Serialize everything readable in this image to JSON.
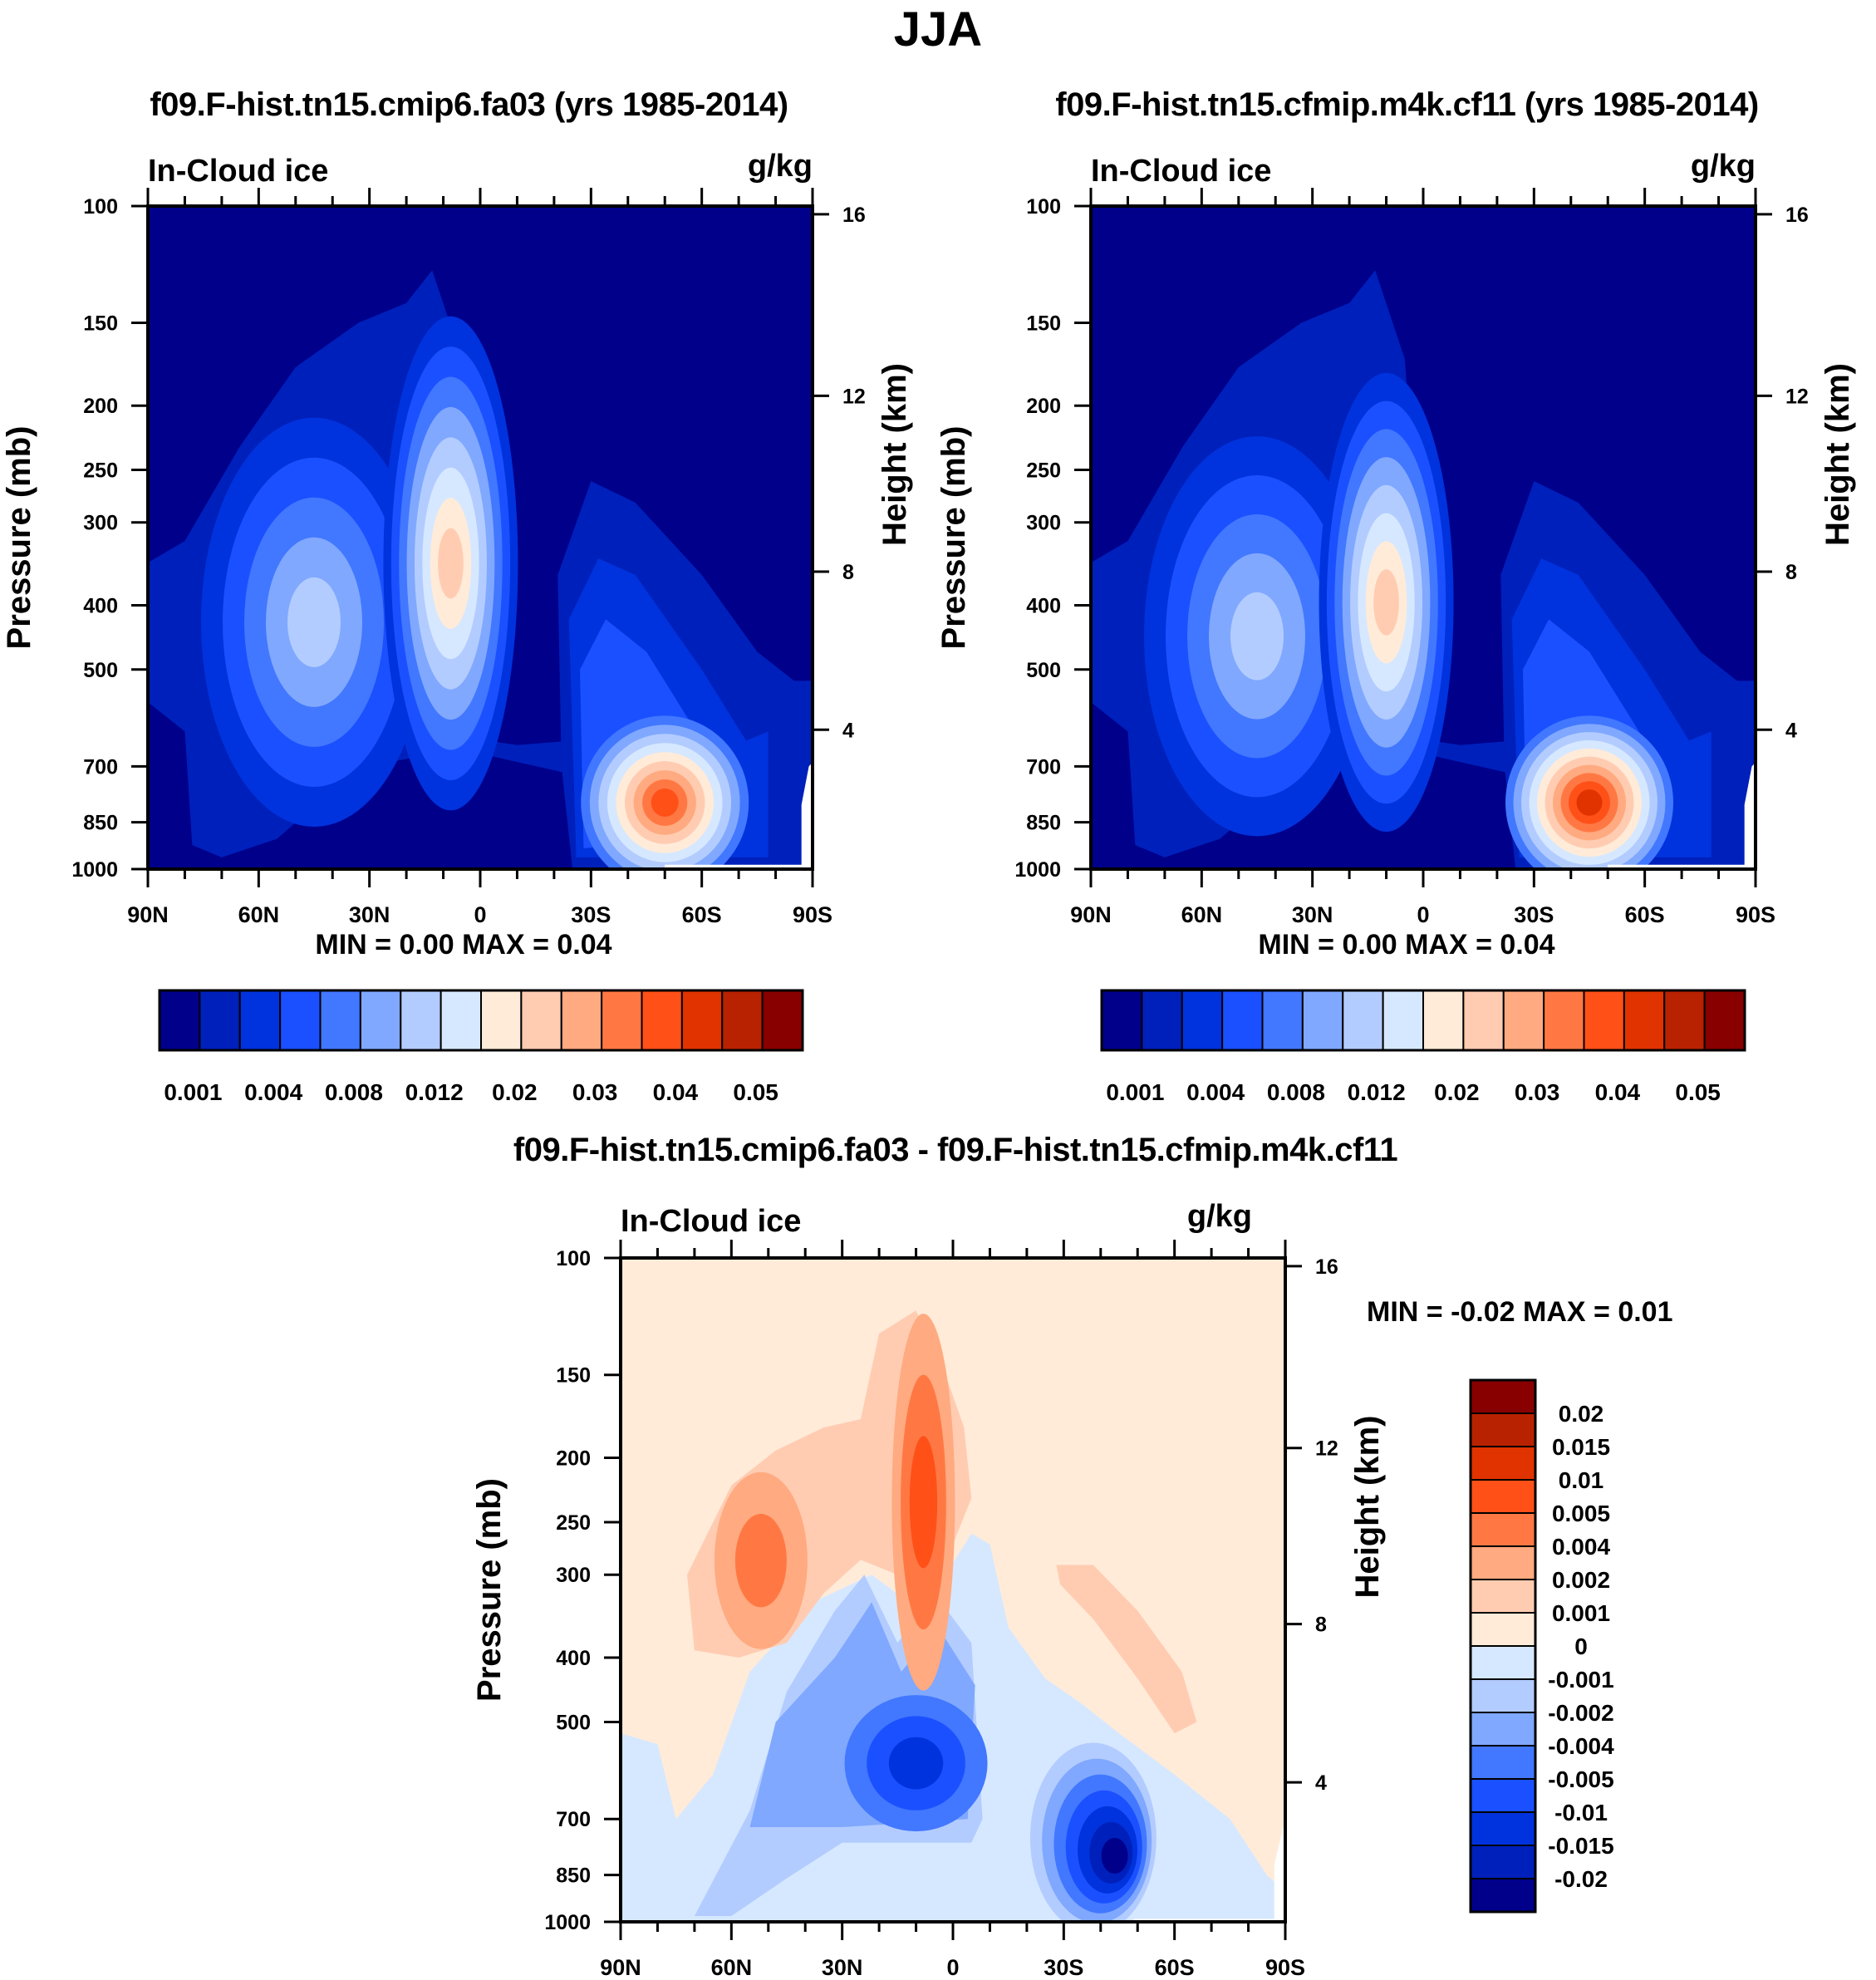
{
  "main_title": "JJA",
  "chart_data": [
    {
      "id": "top-left",
      "type": "heatmap",
      "title": "f09.F-hist.tn15.cmip6.fa03 (yrs 1985-2014)",
      "left_string": "In-Cloud ice",
      "right_string": "g/kg",
      "xlabel": "",
      "ylabel": "Pressure (mb)",
      "ylabel_right": "Height (km)",
      "x_ticks": [
        "90N",
        "60N",
        "30N",
        "0",
        "30S",
        "60S",
        "90S"
      ],
      "x_range": [
        90,
        -90
      ],
      "y_ticks": [
        100,
        150,
        200,
        250,
        300,
        400,
        500,
        700,
        850,
        1000
      ],
      "y_range": [
        100,
        1000
      ],
      "y_scale": "log",
      "right_ticks": [
        16,
        12,
        8,
        4
      ],
      "stats": "MIN =   0.00  MAX =   0.04",
      "min": 0.0,
      "max": 0.04,
      "colorbar": {
        "orientation": "horizontal",
        "labels": [
          "0.001",
          "0.004",
          "0.008",
          "0.012",
          "0.02",
          "0.03",
          "0.04",
          "0.05"
        ],
        "levels": [
          0.001,
          0.002,
          0.004,
          0.006,
          0.008,
          0.01,
          0.012,
          0.015,
          0.02,
          0.025,
          0.03,
          0.035,
          0.04,
          0.045,
          0.05
        ],
        "colors": [
          "#00008b",
          "#0020bb",
          "#0033dd",
          "#1a50ff",
          "#4277ff",
          "#80a8ff",
          "#b3ccff",
          "#d6e8ff",
          "#ffebd8",
          "#ffccb2",
          "#ffaa80",
          "#ff7844",
          "#ff5018",
          "#e03300",
          "#b82200",
          "#880000"
        ]
      },
      "features": [
        {
          "name": "nh-storm-track-ice",
          "lat": 45,
          "p_top": 300,
          "p_bot": 600,
          "peak_level": 6
        },
        {
          "name": "tropical-ice-column",
          "lat": 8,
          "p_top": 230,
          "p_bot": 520,
          "peak_level": 9
        },
        {
          "name": "sh-lowlevel-ice",
          "lat": -50,
          "p_top": 700,
          "p_bot": 900,
          "peak_level": 12
        }
      ],
      "missing_region": "below ~900 mb south of 50S (white)"
    },
    {
      "id": "top-right",
      "type": "heatmap",
      "title": "f09.F-hist.tn15.cfmip.m4k.cf11 (yrs 1985-2014)",
      "left_string": "In-Cloud ice",
      "right_string": "g/kg",
      "xlabel": "",
      "ylabel": "Pressure (mb)",
      "ylabel_right": "Height (km)",
      "x_ticks": [
        "90N",
        "60N",
        "30N",
        "0",
        "30S",
        "60S",
        "90S"
      ],
      "x_range": [
        90,
        -90
      ],
      "y_ticks": [
        100,
        150,
        200,
        250,
        300,
        400,
        500,
        700,
        850,
        1000
      ],
      "y_range": [
        100,
        1000
      ],
      "y_scale": "log",
      "right_ticks": [
        16,
        12,
        8,
        4
      ],
      "stats": "MIN =   0.00  MAX =   0.04",
      "min": 0.0,
      "max": 0.04,
      "colorbar": {
        "orientation": "horizontal",
        "labels": [
          "0.001",
          "0.004",
          "0.008",
          "0.012",
          "0.02",
          "0.03",
          "0.04",
          "0.05"
        ],
        "levels": [
          0.001,
          0.002,
          0.004,
          0.006,
          0.008,
          0.01,
          0.012,
          0.015,
          0.02,
          0.025,
          0.03,
          0.035,
          0.04,
          0.045,
          0.05
        ],
        "colors": [
          "#00008b",
          "#0020bb",
          "#0033dd",
          "#1a50ff",
          "#4277ff",
          "#80a8ff",
          "#b3ccff",
          "#d6e8ff",
          "#ffebd8",
          "#ffccb2",
          "#ffaa80",
          "#ff7844",
          "#ff5018",
          "#e03300",
          "#b82200",
          "#880000"
        ]
      },
      "features": [
        {
          "name": "nh-storm-track-ice",
          "lat": 45,
          "p_top": 320,
          "p_bot": 620,
          "peak_level": 6
        },
        {
          "name": "tropical-ice-column",
          "lat": 10,
          "p_top": 280,
          "p_bot": 560,
          "peak_level": 9
        },
        {
          "name": "sh-lowlevel-ice",
          "lat": -45,
          "p_top": 700,
          "p_bot": 900,
          "peak_level": 13
        }
      ],
      "missing_region": "below ~900 mb south of 50S (white)"
    },
    {
      "id": "bottom-diff",
      "type": "heatmap",
      "title": "f09.F-hist.tn15.cmip6.fa03 - f09.F-hist.tn15.cfmip.m4k.cf11",
      "left_string": "In-Cloud ice",
      "right_string": "g/kg",
      "xlabel": "",
      "ylabel": "Pressure (mb)",
      "ylabel_right": "Height (km)",
      "x_ticks": [
        "90N",
        "60N",
        "30N",
        "0",
        "30S",
        "60S",
        "90S"
      ],
      "x_range": [
        90,
        -90
      ],
      "y_ticks": [
        100,
        150,
        200,
        250,
        300,
        400,
        500,
        700,
        850,
        1000
      ],
      "y_range": [
        100,
        1000
      ],
      "y_scale": "log",
      "right_ticks": [
        16,
        12,
        8,
        4
      ],
      "stats": "MIN =  -0.02  MAX =   0.01",
      "min": -0.02,
      "max": 0.01,
      "colorbar": {
        "orientation": "vertical",
        "labels": [
          "0.02",
          "0.015",
          "0.01",
          "0.005",
          "0.004",
          "0.002",
          "0.001",
          "0",
          "-0.001",
          "-0.002",
          "-0.004",
          "-0.005",
          "-0.01",
          "-0.015",
          "-0.02"
        ],
        "colors": [
          "#880000",
          "#b82200",
          "#e03300",
          "#ff5018",
          "#ff7844",
          "#ffaa80",
          "#ffccb2",
          "#ffebd8",
          "#d6e8ff",
          "#b3ccff",
          "#80a8ff",
          "#4277ff",
          "#1a50ff",
          "#0033dd",
          "#0020bb",
          "#00008b"
        ]
      },
      "features": [
        {
          "name": "tropical-upper-increase",
          "lat": 8,
          "p_top": 190,
          "p_bot": 300,
          "value": 0.005
        },
        {
          "name": "nh-midlat-upper-increase",
          "lat": 52,
          "p_top": 240,
          "p_bot": 340,
          "value": 0.004
        },
        {
          "name": "sh-midlat-increase",
          "lat": -45,
          "p_top": 300,
          "p_bot": 480,
          "value": 0.002
        },
        {
          "name": "tropical-midlevel-decrease",
          "lat": 10,
          "p_top": 520,
          "p_bot": 640,
          "value": -0.01
        },
        {
          "name": "sh-lowlevel-decrease",
          "lat": -38,
          "p_top": 650,
          "p_bot": 860,
          "value": -0.015
        }
      ]
    }
  ]
}
